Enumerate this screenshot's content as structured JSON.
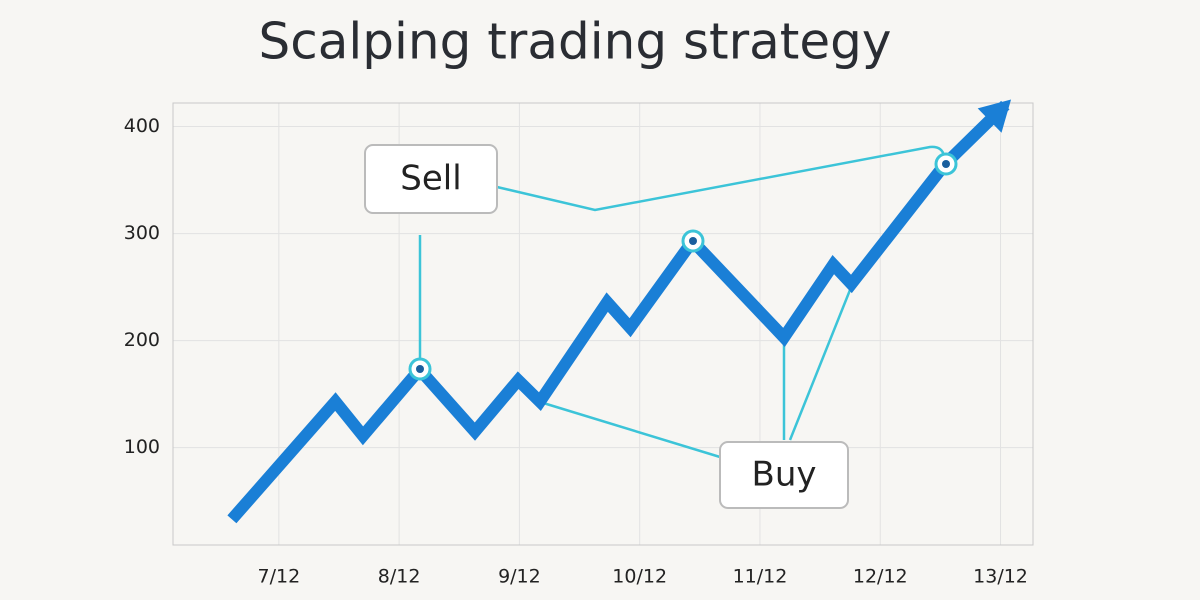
{
  "chart_data": {
    "type": "line",
    "title": "Scalping trading strategy",
    "xlim": [
      6.12,
      13.27
    ],
    "xticks": [
      {
        "value": 7,
        "label": "7/12"
      },
      {
        "value": 8,
        "label": "8/12"
      },
      {
        "value": 9,
        "label": "9/12"
      },
      {
        "value": 10,
        "label": "10/12"
      },
      {
        "value": 11,
        "label": "11/12"
      },
      {
        "value": 12,
        "label": "12/12"
      },
      {
        "value": 13,
        "label": "13/12"
      }
    ],
    "ylim": [
      9,
      422
    ],
    "yticks": [
      100,
      200,
      300,
      400
    ],
    "grid": true,
    "series": [
      {
        "color": "#1a7fd6",
        "x": [
          6.61,
          7.47,
          7.7,
          8.17,
          8.63,
          8.99,
          9.17,
          9.73,
          9.92,
          10.44,
          11.2,
          11.61,
          11.76,
          12.54,
          13.04
        ],
        "values": [
          33,
          143,
          111,
          173,
          115,
          163,
          143,
          236,
          212,
          293,
          203,
          271,
          253,
          365,
          420
        ]
      }
    ],
    "annotations": [
      "Sell",
      "Buy"
    ]
  }
}
